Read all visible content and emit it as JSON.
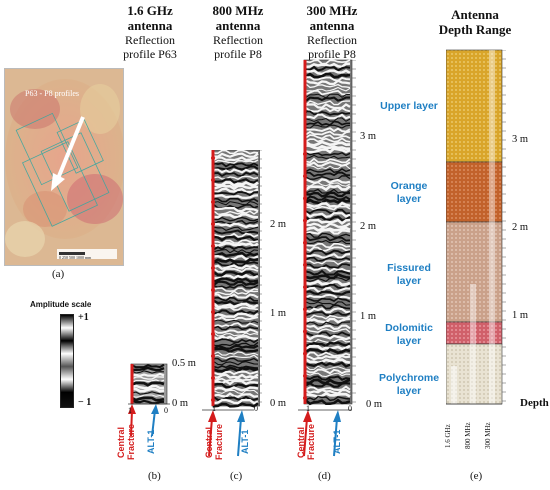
{
  "headers": {
    "b": {
      "antenna": "1.6 GHz antenna",
      "profile": "Reflection profile P63"
    },
    "c": {
      "antenna": "800 MHz antenna",
      "profile": "Reflection profile P8"
    },
    "d": {
      "antenna": "300 MHz antenna",
      "profile": "Reflection profile P8"
    },
    "e": {
      "title": "Antenna Depth Range"
    }
  },
  "map": {
    "annotation": "P63 - P8 profiles",
    "scale_text": "0   250   500        1000 mm"
  },
  "amplitude_scale": {
    "title": "Amplitude scale",
    "max": "+1",
    "min": "− 1"
  },
  "panel_b": {
    "depth_labels": [
      "0.5 m",
      "0 m"
    ],
    "axis_ticks": [
      "1",
      "0"
    ]
  },
  "panel_c": {
    "depth_labels": [
      "2 m",
      "1 m",
      "0 m"
    ],
    "axis_ticks": [
      "1",
      "0"
    ]
  },
  "panel_d": {
    "depth_labels": [
      "3 m",
      "2 m",
      "1 m",
      "0 m"
    ],
    "axis_ticks": [
      "1",
      "0"
    ]
  },
  "arrows": {
    "central": "Central Fracture",
    "alt": "ALT-1"
  },
  "layers": [
    "Upper layer",
    "Orange layer",
    "Fissured layer",
    "Dolomitic layer",
    "Polychrome layer"
  ],
  "panel_e": {
    "depth_labels": [
      "3 m",
      "2 m",
      "1 m",
      "Depth"
    ],
    "bottom_labels": [
      "1.6 GHz",
      "800 MHz",
      "300 MHz"
    ]
  },
  "panel_letters": [
    "(a)",
    "(b)",
    "(c)",
    "(d)",
    "(e)"
  ],
  "colors": {
    "upper": "#d9a52a",
    "orange": "#c2622b",
    "fissured": "#caa18a",
    "dolomitic": "#d0606a",
    "polychrome": "#e9e3d3",
    "blue": "#1f7fc3",
    "red": "#d41c1c"
  }
}
